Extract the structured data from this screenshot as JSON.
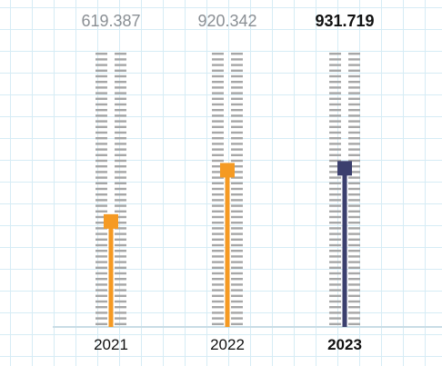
{
  "chart_data": {
    "type": "bar",
    "categories": [
      "2021",
      "2022",
      "2023"
    ],
    "values": [
      619.387,
      920.342,
      931.719
    ],
    "value_labels": [
      "619.387",
      "920.342",
      "931.719"
    ],
    "highlight_index": 2,
    "ylim": [
      0,
      1600
    ],
    "grid": true,
    "colors": {
      "bar": "#f59a23",
      "highlight": "#3b3f6e",
      "track": "#a7a7a7",
      "value_label": "#8a8f94",
      "baseline": "#c9dde6"
    }
  }
}
